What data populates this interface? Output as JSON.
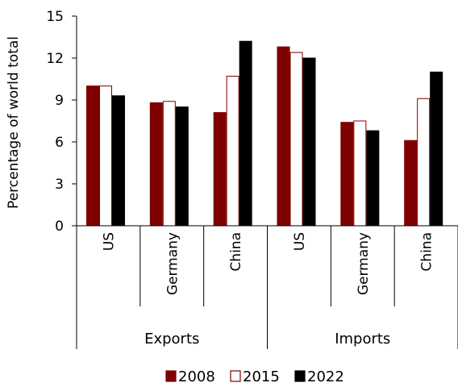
{
  "chart_data": {
    "type": "bar",
    "ylabel": "Percentage of world total",
    "ylim": [
      0,
      15
    ],
    "yticks": [
      0,
      3,
      6,
      9,
      12,
      15
    ],
    "grid": false,
    "legend_position": "bottom",
    "groups": [
      {
        "label": "Exports",
        "categories": [
          "US",
          "Germany",
          "China"
        ]
      },
      {
        "label": "Imports",
        "categories": [
          "US",
          "Germany",
          "China"
        ]
      }
    ],
    "series": [
      {
        "name": "2008",
        "color": "#7f0000",
        "fill": "#7f0000",
        "values": [
          10.0,
          8.8,
          8.1,
          12.8,
          7.4,
          6.1
        ]
      },
      {
        "name": "2015",
        "color": "#7f0000",
        "fill": "#ffffff",
        "values": [
          10.0,
          8.9,
          10.7,
          12.4,
          7.5,
          9.1
        ]
      },
      {
        "name": "2022",
        "color": "#000000",
        "fill": "#000000",
        "values": [
          9.3,
          8.5,
          13.2,
          12.0,
          6.8,
          11.0
        ]
      }
    ]
  }
}
